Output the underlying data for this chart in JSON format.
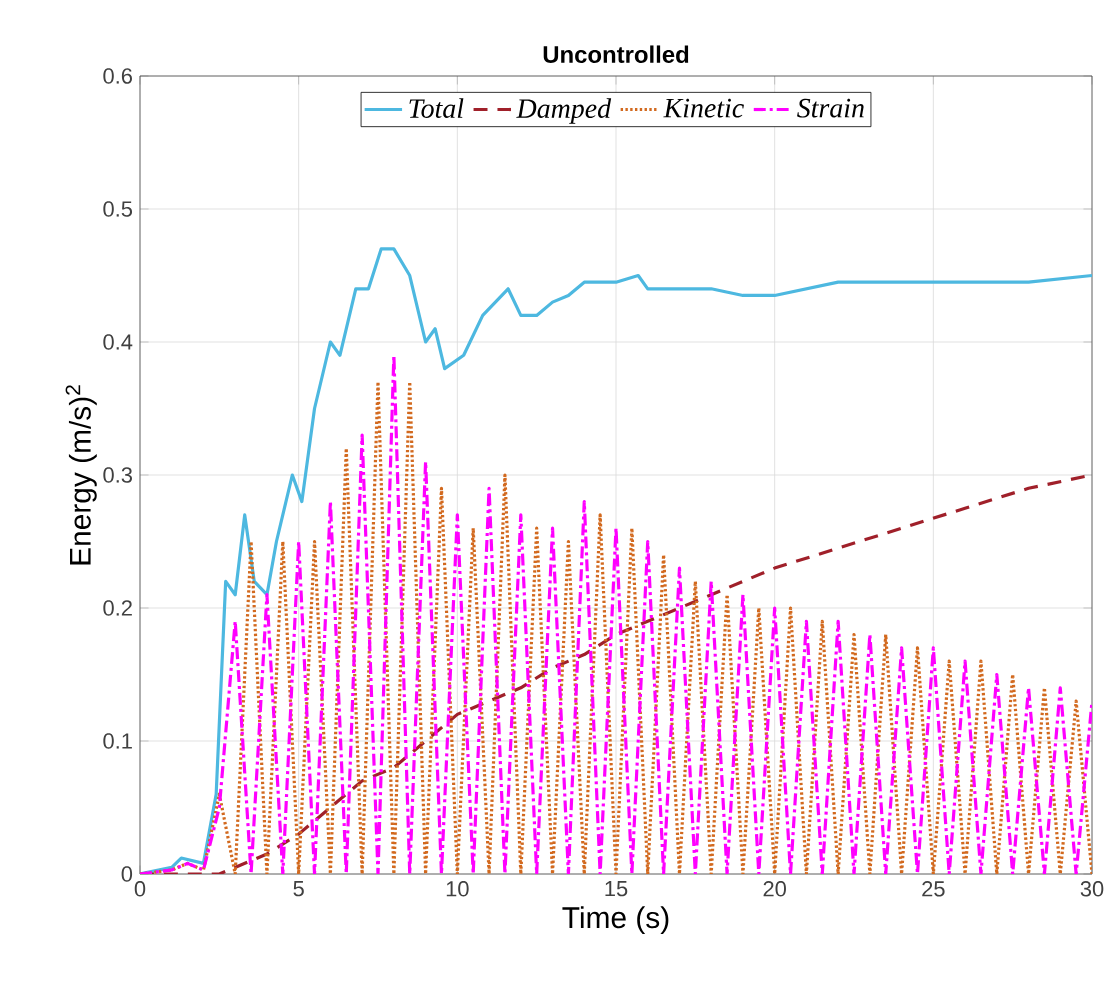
{
  "chart_data": {
    "type": "line",
    "title": "Uncontrolled",
    "xlabel": "Time (s)",
    "ylabel": "Energy (m/s)$^{2}$",
    "xlim": [
      0,
      30
    ],
    "ylim": [
      0,
      0.6
    ],
    "xticks": [
      0,
      5,
      10,
      15,
      20,
      25,
      30
    ],
    "yticks": [
      0,
      0.1,
      0.2,
      0.3,
      0.4,
      0.5,
      0.6
    ],
    "grid": true,
    "legend": "top",
    "series": [
      {
        "name": "Total",
        "color": "#4db8e0",
        "line_style": "solid",
        "x": [
          0,
          1,
          1.3,
          2,
          2.4,
          2.7,
          3.0,
          3.3,
          3.6,
          4.0,
          4.3,
          4.8,
          5.1,
          5.5,
          6.0,
          6.3,
          6.8,
          7.2,
          7.6,
          8.0,
          8.5,
          9.0,
          9.3,
          9.6,
          10.2,
          10.8,
          11.2,
          11.6,
          12,
          12.5,
          13,
          13.5,
          14,
          15,
          15.7,
          16,
          17,
          18,
          19,
          20,
          21,
          22,
          24,
          26,
          28,
          30
        ],
        "values": [
          0,
          0.005,
          0.012,
          0.008,
          0.06,
          0.22,
          0.21,
          0.27,
          0.22,
          0.21,
          0.25,
          0.3,
          0.28,
          0.35,
          0.4,
          0.39,
          0.44,
          0.44,
          0.47,
          0.47,
          0.45,
          0.4,
          0.41,
          0.38,
          0.39,
          0.42,
          0.43,
          0.44,
          0.42,
          0.42,
          0.43,
          0.435,
          0.445,
          0.445,
          0.45,
          0.44,
          0.44,
          0.44,
          0.435,
          0.435,
          0.44,
          0.445,
          0.445,
          0.445,
          0.445,
          0.45
        ]
      },
      {
        "name": "Damped",
        "color": "#a0202a",
        "line_style": "dashed",
        "x": [
          0,
          2.5,
          4,
          5,
          6,
          7,
          8,
          9,
          10,
          11,
          12,
          13,
          14,
          15,
          16,
          17,
          18,
          19,
          20,
          22,
          24,
          26,
          28,
          30
        ],
        "values": [
          0,
          0,
          0.015,
          0.03,
          0.05,
          0.07,
          0.08,
          0.1,
          0.12,
          0.13,
          0.14,
          0.155,
          0.165,
          0.18,
          0.19,
          0.2,
          0.21,
          0.22,
          0.23,
          0.245,
          0.26,
          0.275,
          0.29,
          0.3
        ]
      },
      {
        "name": "Kinetic",
        "color": "#d2691e",
        "line_style": "dotted",
        "x": [
          0,
          1,
          1.5,
          2,
          2.5,
          3,
          3.5,
          4,
          4.5,
          5,
          5.5,
          6,
          6.5,
          7,
          7.5,
          8,
          8.5,
          9,
          9.5,
          10,
          10.5,
          11,
          11.5,
          12,
          12.5,
          13,
          13.5,
          14,
          14.5,
          15,
          15.5,
          16,
          16.5,
          17,
          17.5,
          18,
          18.5,
          19,
          19.5,
          20,
          20.5,
          21,
          21.5,
          22,
          22.5,
          23,
          23.5,
          24,
          24.5,
          25,
          25.5,
          26,
          26.5,
          27,
          27.5,
          28,
          28.5,
          29,
          29.5,
          30
        ],
        "values": [
          0,
          0.003,
          0.008,
          0.003,
          0.06,
          0,
          0.25,
          0,
          0.25,
          0,
          0.25,
          0,
          0.32,
          0,
          0.37,
          0,
          0.37,
          0,
          0.29,
          0,
          0.26,
          0,
          0.3,
          0,
          0.26,
          0,
          0.25,
          0,
          0.27,
          0,
          0.26,
          0,
          0.24,
          0,
          0.22,
          0,
          0.21,
          0,
          0.2,
          0,
          0.2,
          0,
          0.19,
          0,
          0.18,
          0,
          0.18,
          0,
          0.17,
          0,
          0.16,
          0,
          0.16,
          0,
          0.15,
          0,
          0.14,
          0,
          0.13,
          0
        ]
      },
      {
        "name": "Strain",
        "color": "#ff00ff",
        "line_style": "dashdot",
        "x": [
          0,
          1,
          1.5,
          2,
          2.5,
          3,
          3.5,
          4,
          4.5,
          5,
          5.5,
          6,
          6.5,
          7,
          7.5,
          8,
          8.5,
          9,
          9.5,
          10,
          10.5,
          11,
          11.5,
          12,
          12.5,
          13,
          13.5,
          14,
          14.5,
          15,
          15.5,
          16,
          16.5,
          17,
          17.5,
          18,
          18.5,
          19,
          19.5,
          20,
          20.5,
          21,
          21.5,
          22,
          22.5,
          23,
          23.5,
          24,
          24.5,
          25,
          25.5,
          26,
          26.5,
          27,
          27.5,
          28,
          28.5,
          29,
          29.5,
          30
        ],
        "values": [
          0,
          0.003,
          0.008,
          0.003,
          0.05,
          0.19,
          0,
          0.21,
          0,
          0.25,
          0,
          0.28,
          0,
          0.33,
          0,
          0.39,
          0,
          0.31,
          0,
          0.27,
          0,
          0.29,
          0,
          0.27,
          0,
          0.26,
          0,
          0.28,
          0,
          0.26,
          0,
          0.25,
          0,
          0.23,
          0,
          0.22,
          0,
          0.21,
          0,
          0.2,
          0,
          0.19,
          0,
          0.19,
          0,
          0.18,
          0,
          0.17,
          0,
          0.17,
          0,
          0.16,
          0,
          0.15,
          0,
          0.14,
          0,
          0.14,
          0,
          0.13
        ]
      }
    ]
  }
}
